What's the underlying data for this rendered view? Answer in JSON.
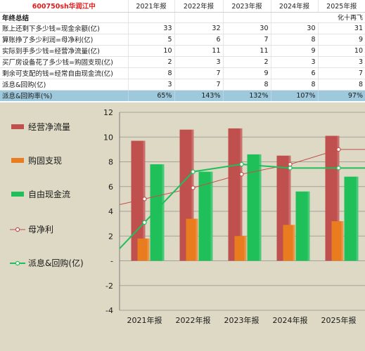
{
  "table": {
    "stock_title": "600750sh华润江中",
    "years": [
      "2021年报",
      "2022年报",
      "2023年报",
      "2024年报",
      "2025年报"
    ],
    "section_label": "年终总结",
    "editor": "化十再飞",
    "rows": [
      {
        "label": "账上还剩下多少钱=现金余额(亿)",
        "values": [
          "33",
          "32",
          "30",
          "30",
          "31"
        ]
      },
      {
        "label": "算账挣了多少利润=母净利(亿)",
        "values": [
          "5",
          "6",
          "7",
          "8",
          "9"
        ]
      },
      {
        "label": "实际到手多少钱=经营净流量(亿)",
        "values": [
          "10",
          "11",
          "11",
          "9",
          "10"
        ]
      },
      {
        "label": "买厂房设备花了多少钱=购固支现(亿)",
        "values": [
          "2",
          "3",
          "2",
          "3",
          "3"
        ]
      },
      {
        "label": "剩余可支配的钱=经常自由现金流(亿)",
        "values": [
          "8",
          "7",
          "9",
          "6",
          "7"
        ]
      },
      {
        "label": "派息&回购(亿)",
        "values": [
          "3",
          "7",
          "8",
          "8",
          "8"
        ]
      }
    ],
    "ratio": {
      "label": "派息&回购率(%)",
      "values": [
        "65%",
        "143%",
        "132%",
        "107%",
        "97%"
      ]
    }
  },
  "chart_data": {
    "type": "bar",
    "categories": [
      "2021年报",
      "2022年报",
      "2023年报",
      "2024年报",
      "2025年报"
    ],
    "ylim": [
      -4,
      12
    ],
    "yticks": [
      "-4",
      "-2",
      "-",
      "2",
      "4",
      "6",
      "8",
      "10",
      "12"
    ],
    "grid": true,
    "legend_position": "left",
    "series": [
      {
        "name": "经营净流量",
        "kind": "bar",
        "color": "#c0504d",
        "values": [
          9.7,
          10.6,
          10.7,
          8.5,
          10.1
        ]
      },
      {
        "name": "购固支现",
        "kind": "bar",
        "color": "#e87c1e",
        "values": [
          1.8,
          3.4,
          2.0,
          2.9,
          3.2
        ]
      },
      {
        "name": "自由现金流",
        "kind": "bar",
        "color": "#1fbf5a",
        "values": [
          7.8,
          7.2,
          8.6,
          5.6,
          6.8
        ]
      },
      {
        "name": "母净利",
        "kind": "line",
        "color": "#c0504d",
        "values": [
          5.0,
          5.9,
          7.0,
          7.8,
          9.0
        ]
      },
      {
        "name": "派息&回购(亿)",
        "kind": "line",
        "color": "#1fbf5a",
        "values": [
          3.1,
          7.2,
          7.8,
          7.5,
          7.5
        ]
      }
    ]
  }
}
